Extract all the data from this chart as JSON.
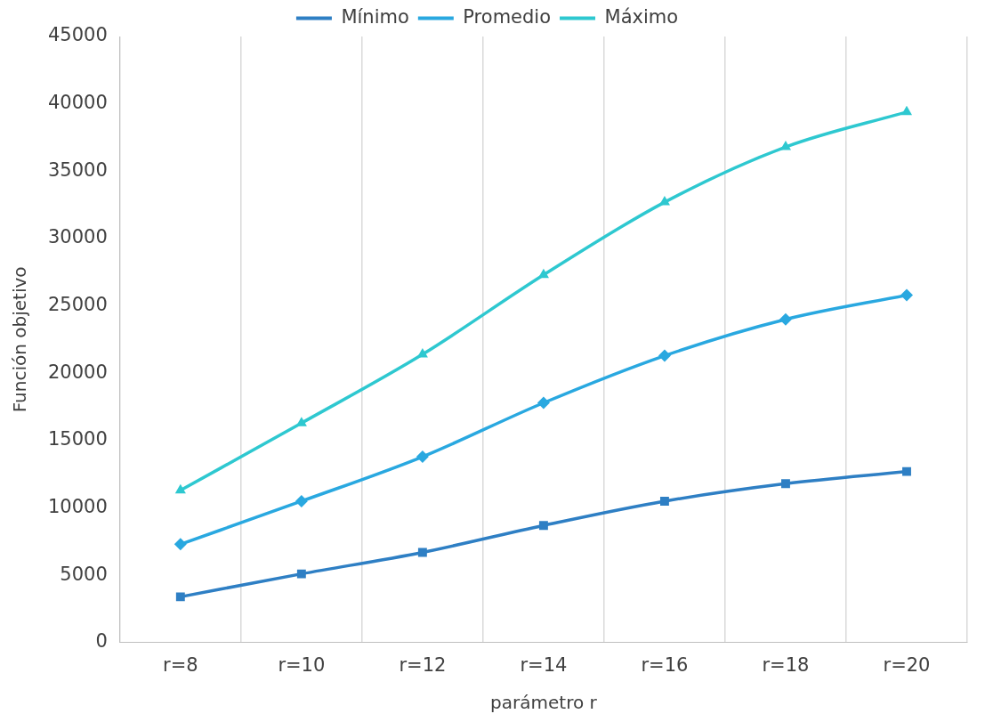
{
  "chart_data": {
    "type": "line",
    "xlabel": "parámetro r",
    "ylabel": "Función objetivo",
    "categories": [
      "r=8",
      "r=10",
      "r=12",
      "r=14",
      "r=16",
      "r=18",
      "r=20"
    ],
    "series": [
      {
        "name": "Mínimo",
        "color": "#2e7fc4",
        "marker": "square",
        "values": [
          3400,
          5100,
          6700,
          8700,
          10500,
          11800,
          12700
        ]
      },
      {
        "name": "Promedio",
        "color": "#29a8e0",
        "marker": "diamond",
        "values": [
          7300,
          10500,
          13800,
          17800,
          21300,
          24000,
          25800
        ]
      },
      {
        "name": "Máximo",
        "color": "#2ec8d0",
        "marker": "triangle",
        "values": [
          11300,
          16300,
          21400,
          27300,
          32700,
          36800,
          39400
        ]
      }
    ],
    "ylim": [
      0,
      45000
    ],
    "yticks": [
      0,
      5000,
      10000,
      15000,
      20000,
      25000,
      30000,
      35000,
      40000,
      45000
    ],
    "grid": "x",
    "legend": "top"
  }
}
